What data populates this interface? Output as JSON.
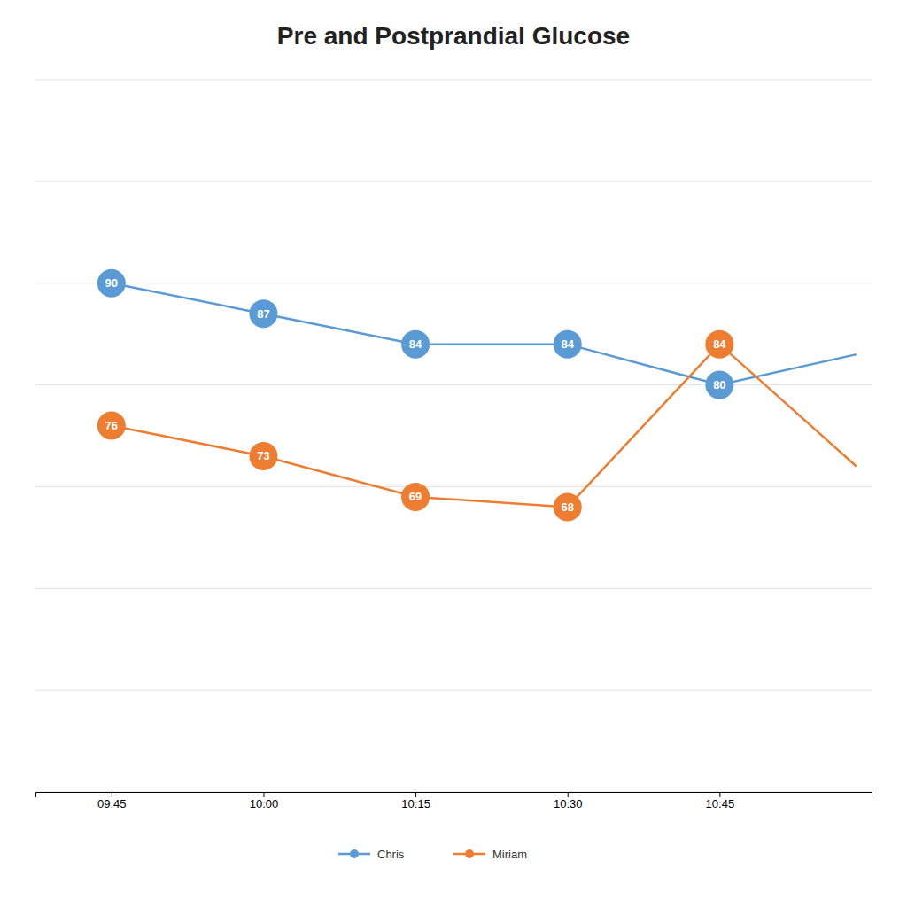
{
  "chart_data": {
    "type": "line",
    "title": "Pre and Postprandial Glucose",
    "x": [
      0,
      1,
      2,
      3,
      4,
      4.9
    ],
    "xlim": [
      -0.5,
      5.0
    ],
    "xticks": [
      {
        "value": 0,
        "label": "09:45"
      },
      {
        "value": 1,
        "label": "10:00"
      },
      {
        "value": 2,
        "label": "10:15"
      },
      {
        "value": 3,
        "label": "10:30"
      },
      {
        "value": 4,
        "label": "10:45"
      }
    ],
    "ylim": [
      40,
      110
    ],
    "yticks": [
      40,
      50,
      60,
      70,
      80,
      90,
      100,
      110
    ],
    "grid": true,
    "tick_labels": "x",
    "legend": "bottom",
    "data_labels": true,
    "marker": "circle",
    "series": [
      {
        "name": "Chris",
        "color": "#5B9BD5",
        "values": [
          90,
          87,
          84,
          84,
          80,
          83
        ],
        "value_labels": [
          "90",
          "87",
          "84",
          "84",
          "80",
          null
        ]
      },
      {
        "name": "Miriam",
        "color": "#ED7D31",
        "values": [
          76,
          73,
          69,
          68,
          84,
          72
        ],
        "value_labels": [
          "76",
          "73",
          "69",
          "68",
          "84",
          null
        ]
      }
    ]
  }
}
